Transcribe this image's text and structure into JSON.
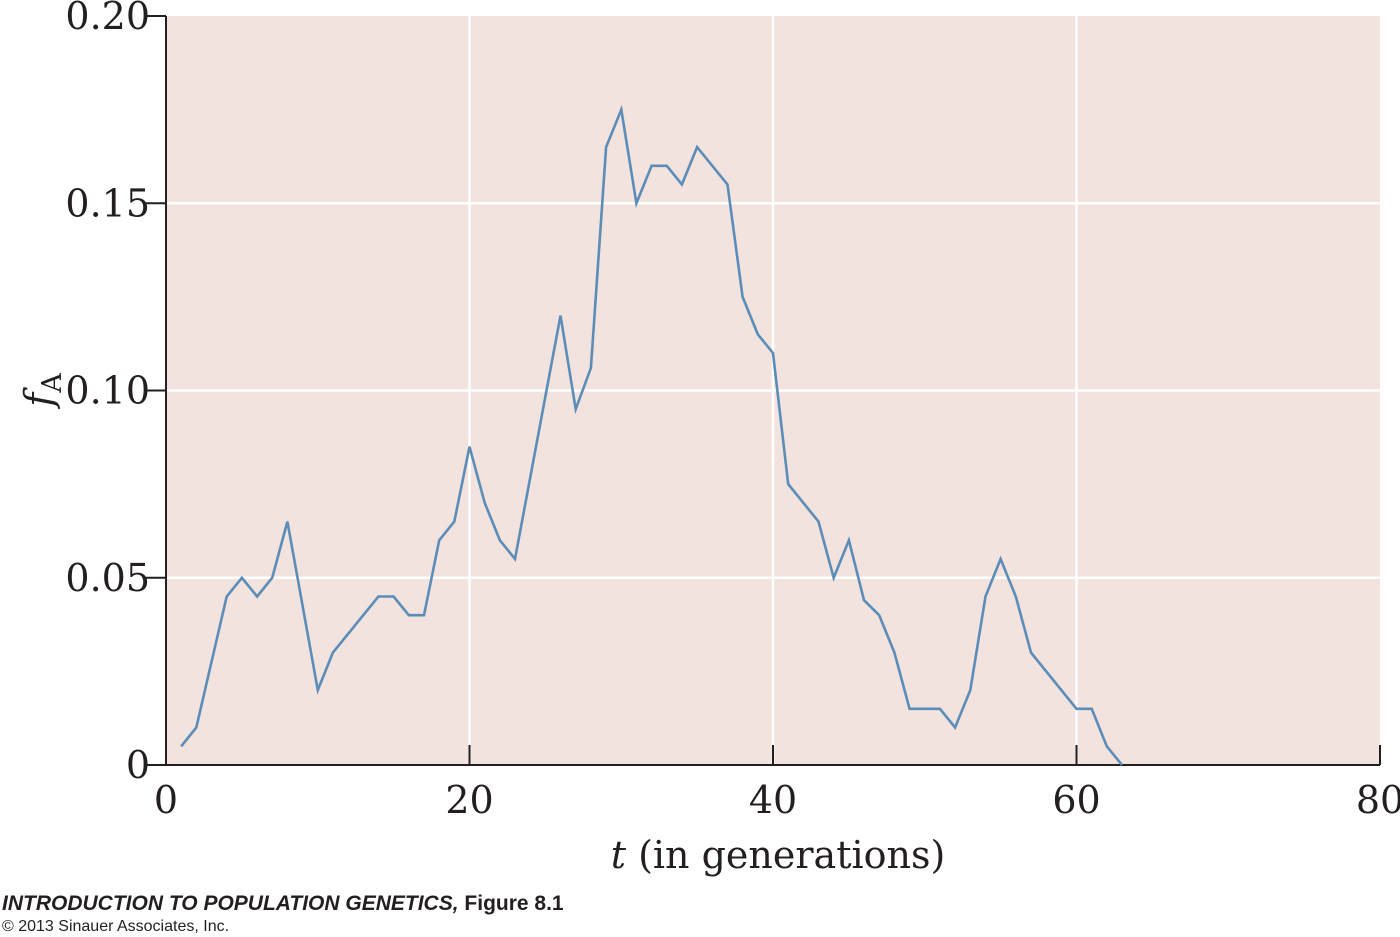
{
  "chart_data": {
    "type": "line",
    "xlabel_var": "t",
    "xlabel_rest": " (in generations)",
    "ylabel_main": "f",
    "ylabel_sub": "A",
    "xlim": [
      0,
      80
    ],
    "ylim": [
      0,
      0.2
    ],
    "xticks": [
      0,
      20,
      40,
      60,
      80
    ],
    "xtick_labels": [
      "0",
      "20",
      "40",
      "60",
      "80"
    ],
    "yticks": [
      0,
      0.05,
      0.1,
      0.15,
      0.2
    ],
    "ytick_labels": [
      "0",
      "0.05",
      "0.10",
      "0.15",
      "0.20"
    ],
    "grid": true,
    "background_color": "#f2e3de",
    "grid_color": "#ffffff",
    "line_color": "#5b8db8",
    "series": [
      {
        "x": [
          1,
          2,
          4,
          5,
          6,
          7,
          8,
          10,
          11,
          14,
          15,
          16,
          17,
          18,
          19,
          20,
          21,
          22,
          23,
          26,
          27,
          28,
          29,
          30,
          31,
          32,
          33,
          34,
          35,
          37,
          38,
          39,
          40,
          41,
          43,
          44,
          45,
          46,
          47,
          48,
          49,
          51,
          52,
          53,
          54,
          55,
          56,
          57,
          60,
          61,
          62,
          63
        ],
        "y": [
          0.005,
          0.01,
          0.045,
          0.05,
          0.045,
          0.05,
          0.065,
          0.02,
          0.03,
          0.045,
          0.045,
          0.04,
          0.04,
          0.06,
          0.065,
          0.085,
          0.07,
          0.06,
          0.055,
          0.12,
          0.095,
          0.106,
          0.165,
          0.175,
          0.15,
          0.16,
          0.16,
          0.155,
          0.165,
          0.155,
          0.125,
          0.115,
          0.11,
          0.075,
          0.065,
          0.05,
          0.06,
          0.044,
          0.04,
          0.03,
          0.015,
          0.015,
          0.01,
          0.02,
          0.045,
          0.055,
          0.045,
          0.03,
          0.015,
          0.015,
          0.005,
          0.0
        ]
      }
    ]
  },
  "credit": {
    "book_title": "INTRODUCTION TO POPULATION GENETICS,",
    "figure": " Figure 8.1",
    "copyright": "© 2013 Sinauer Associates, Inc."
  }
}
